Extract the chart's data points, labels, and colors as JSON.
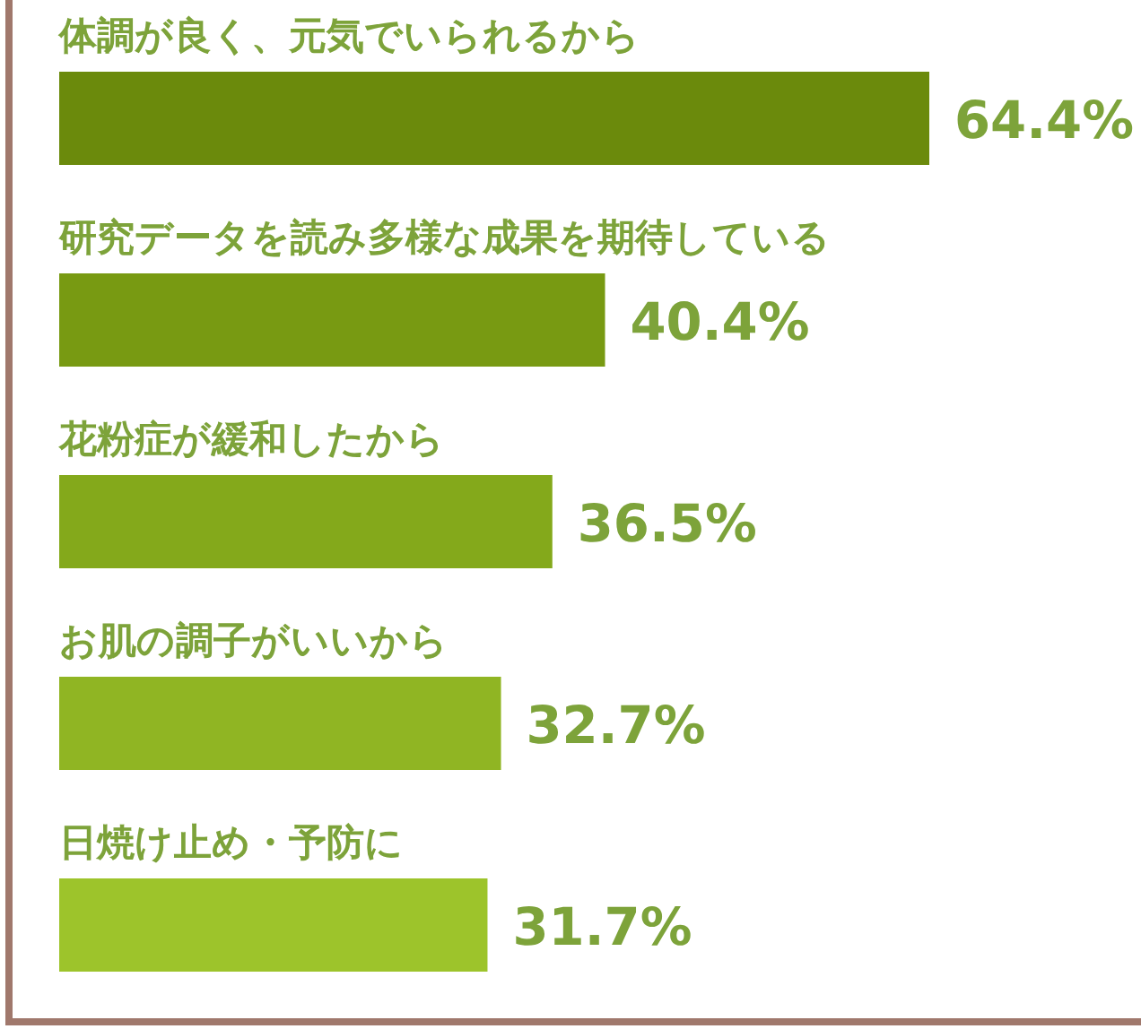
{
  "chart_data": {
    "type": "bar",
    "orientation": "horizontal",
    "categories": [
      "体調が良く、元気でいられるから",
      "研究データを読み多様な成果を期待している",
      "花粉症が緩和したから",
      "お肌の調子がいいから",
      "日焼け止め・予防に"
    ],
    "values": [
      64.4,
      40.4,
      36.5,
      32.7,
      31.7
    ],
    "value_labels": [
      "64.4%",
      "40.4%",
      "36.5%",
      "32.7%",
      "31.7%"
    ],
    "colors": [
      "#6b8a0c",
      "#789a12",
      "#84a91b",
      "#90b523",
      "#9dc42b"
    ]
  }
}
